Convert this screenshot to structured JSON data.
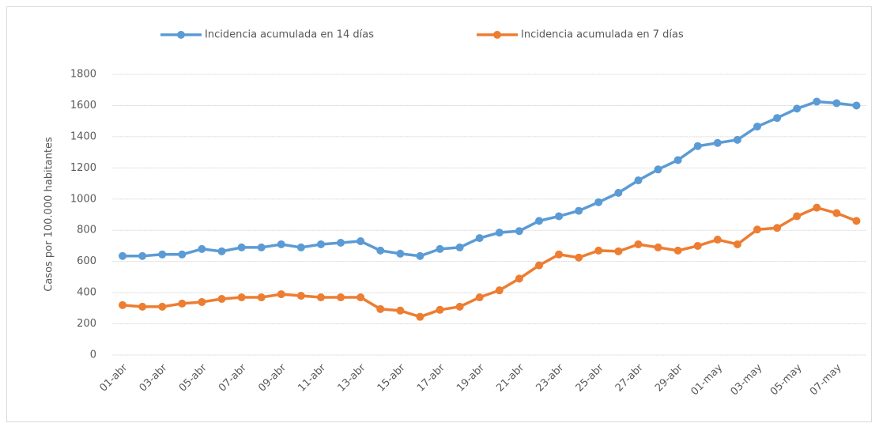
{
  "chart_data": {
    "type": "line",
    "y_label": "Casos por 100.000 habitantes",
    "categories": [
      "01-abr",
      null,
      "03-abr",
      null,
      "05-abr",
      null,
      "07-abr",
      null,
      "09-abr",
      null,
      "11-abr",
      null,
      "13-abr",
      null,
      "15-abr",
      null,
      "17-abr",
      null,
      "19-abr",
      null,
      "21-abr",
      null,
      "23-abr",
      null,
      "25-abr",
      null,
      "27-abr",
      null,
      "29-abr",
      null,
      "01-may",
      null,
      "03-may",
      null,
      "05-may",
      null,
      "07-may",
      null
    ],
    "series": [
      {
        "name": "Incidencia acumulada en 14 días",
        "color": "#5b9bd5",
        "values": [
          635,
          635,
          645,
          645,
          680,
          665,
          690,
          690,
          710,
          690,
          710,
          720,
          730,
          670,
          650,
          635,
          680,
          690,
          750,
          785,
          795,
          860,
          890,
          925,
          980,
          1040,
          1120,
          1190,
          1250,
          1340,
          1360,
          1380,
          1465,
          1520,
          1580,
          1625,
          1615,
          1600
        ]
      },
      {
        "name": "Incidencia acumulada en 7 días",
        "color": "#ed7d31",
        "values": [
          320,
          310,
          310,
          330,
          340,
          360,
          370,
          370,
          390,
          380,
          370,
          370,
          370,
          295,
          285,
          245,
          290,
          310,
          370,
          415,
          490,
          575,
          645,
          625,
          670,
          665,
          710,
          690,
          670,
          700,
          740,
          710,
          805,
          815,
          890,
          945,
          910,
          860
        ]
      }
    ],
    "ylim": [
      0,
      1800
    ],
    "yticks": [
      0,
      200,
      400,
      600,
      800,
      1000,
      1200,
      1400,
      1600,
      1800
    ],
    "grid": true,
    "legend": "top"
  }
}
